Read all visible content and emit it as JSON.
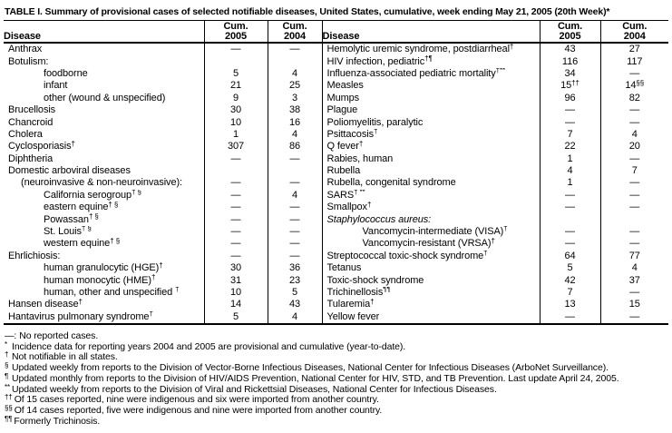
{
  "title": "TABLE I. Summary of provisional cases of selected notifiable diseases, United States, cumulative, week ending May 21, 2005 (20th Week)*",
  "table": {
    "header": {
      "disease": "Disease",
      "cum": "Cum.",
      "y2005": "2005",
      "y2004": "2004"
    },
    "left_rows": [
      {
        "name": "Anthrax",
        "sup": "",
        "indent": 0,
        "italic": false,
        "c5": "—",
        "c5sup": "",
        "c4": "—",
        "c4sup": ""
      },
      {
        "name": "Botulism:",
        "sup": "",
        "indent": 0,
        "italic": false,
        "c5": "",
        "c5sup": "",
        "c4": "",
        "c4sup": ""
      },
      {
        "name": "foodborne",
        "sup": "",
        "indent": 2,
        "italic": false,
        "c5": "5",
        "c5sup": "",
        "c4": "4",
        "c4sup": ""
      },
      {
        "name": "infant",
        "sup": "",
        "indent": 2,
        "italic": false,
        "c5": "21",
        "c5sup": "",
        "c4": "25",
        "c4sup": ""
      },
      {
        "name": "other (wound & unspecified)",
        "sup": "",
        "indent": 2,
        "italic": false,
        "c5": "9",
        "c5sup": "",
        "c4": "3",
        "c4sup": ""
      },
      {
        "name": "Brucellosis",
        "sup": "",
        "indent": 0,
        "italic": false,
        "c5": "30",
        "c5sup": "",
        "c4": "38",
        "c4sup": ""
      },
      {
        "name": "Chancroid",
        "sup": "",
        "indent": 0,
        "italic": false,
        "c5": "10",
        "c5sup": "",
        "c4": "16",
        "c4sup": ""
      },
      {
        "name": "Cholera",
        "sup": "",
        "indent": 0,
        "italic": false,
        "c5": "1",
        "c5sup": "",
        "c4": "4",
        "c4sup": ""
      },
      {
        "name": "Cyclosporiasis",
        "sup": "†",
        "indent": 0,
        "italic": false,
        "c5": "307",
        "c5sup": "",
        "c4": "86",
        "c4sup": ""
      },
      {
        "name": "Diphtheria",
        "sup": "",
        "indent": 0,
        "italic": false,
        "c5": "—",
        "c5sup": "",
        "c4": "—",
        "c4sup": ""
      },
      {
        "name": "Domestic arboviral diseases",
        "sup": "",
        "indent": 0,
        "italic": false,
        "c5": "",
        "c5sup": "",
        "c4": "",
        "c4sup": ""
      },
      {
        "name": "(neuroinvasive & non-neuroinvasive):",
        "sup": "",
        "indent": 1,
        "italic": false,
        "c5": "—",
        "c5sup": "",
        "c4": "—",
        "c4sup": ""
      },
      {
        "name": "California serogroup",
        "sup": "† §",
        "indent": 2,
        "italic": false,
        "c5": "—",
        "c5sup": "",
        "c4": "4",
        "c4sup": ""
      },
      {
        "name": "eastern equine",
        "sup": "† §",
        "indent": 2,
        "italic": false,
        "c5": "—",
        "c5sup": "",
        "c4": "—",
        "c4sup": ""
      },
      {
        "name": "Powassan",
        "sup": "† §",
        "indent": 2,
        "italic": false,
        "c5": "—",
        "c5sup": "",
        "c4": "—",
        "c4sup": ""
      },
      {
        "name": "St. Louis",
        "sup": "† §",
        "indent": 2,
        "italic": false,
        "c5": "—",
        "c5sup": "",
        "c4": "—",
        "c4sup": ""
      },
      {
        "name": "western equine",
        "sup": "† §",
        "indent": 2,
        "italic": false,
        "c5": "—",
        "c5sup": "",
        "c4": "—",
        "c4sup": ""
      },
      {
        "name": "Ehrlichiosis:",
        "sup": "",
        "indent": 0,
        "italic": false,
        "c5": "—",
        "c5sup": "",
        "c4": "—",
        "c4sup": ""
      },
      {
        "name": "human granulocytic (HGE)",
        "sup": "†",
        "indent": 2,
        "italic": false,
        "c5": "30",
        "c5sup": "",
        "c4": "36",
        "c4sup": ""
      },
      {
        "name": "human monocytic (HME)",
        "sup": "†",
        "indent": 2,
        "italic": false,
        "c5": "31",
        "c5sup": "",
        "c4": "23",
        "c4sup": ""
      },
      {
        "name": "human, other and unspecified ",
        "sup": "†",
        "indent": 2,
        "italic": false,
        "c5": "10",
        "c5sup": "",
        "c4": "5",
        "c4sup": ""
      },
      {
        "name": "Hansen disease",
        "sup": "†",
        "indent": 0,
        "italic": false,
        "c5": "14",
        "c5sup": "",
        "c4": "43",
        "c4sup": ""
      },
      {
        "name": "Hantavirus pulmonary syndrome",
        "sup": "†",
        "indent": 0,
        "italic": false,
        "c5": "5",
        "c5sup": "",
        "c4": "4",
        "c4sup": ""
      }
    ],
    "right_rows": [
      {
        "name": "Hemolytic uremic syndrome, postdiarrheal",
        "sup": "†",
        "indent": 0,
        "italic": false,
        "c5": "43",
        "c5sup": "",
        "c4": "27",
        "c4sup": ""
      },
      {
        "name": "HIV infection, pediatric",
        "sup": "†¶",
        "indent": 0,
        "italic": false,
        "c5": "116",
        "c5sup": "",
        "c4": "117",
        "c4sup": ""
      },
      {
        "name": "Influenza-associated pediatric mortality",
        "sup": "†**",
        "indent": 0,
        "italic": false,
        "c5": "34",
        "c5sup": "",
        "c4": "—",
        "c4sup": ""
      },
      {
        "name": "Measles",
        "sup": "",
        "indent": 0,
        "italic": false,
        "c5": "15",
        "c5sup": "††",
        "c4": "14",
        "c4sup": "§§"
      },
      {
        "name": "Mumps",
        "sup": "",
        "indent": 0,
        "italic": false,
        "c5": "96",
        "c5sup": "",
        "c4": "82",
        "c4sup": ""
      },
      {
        "name": "Plague",
        "sup": "",
        "indent": 0,
        "italic": false,
        "c5": "—",
        "c5sup": "",
        "c4": "—",
        "c4sup": ""
      },
      {
        "name": "Poliomyelitis, paralytic",
        "sup": "",
        "indent": 0,
        "italic": false,
        "c5": "—",
        "c5sup": "",
        "c4": "—",
        "c4sup": ""
      },
      {
        "name": "Psittacosis",
        "sup": "†",
        "indent": 0,
        "italic": false,
        "c5": "7",
        "c5sup": "",
        "c4": "4",
        "c4sup": ""
      },
      {
        "name": "Q fever",
        "sup": "†",
        "indent": 0,
        "italic": false,
        "c5": "22",
        "c5sup": "",
        "c4": "20",
        "c4sup": ""
      },
      {
        "name": "Rabies, human",
        "sup": "",
        "indent": 0,
        "italic": false,
        "c5": "1",
        "c5sup": "",
        "c4": "—",
        "c4sup": ""
      },
      {
        "name": "Rubella",
        "sup": "",
        "indent": 0,
        "italic": false,
        "c5": "4",
        "c5sup": "",
        "c4": "7",
        "c4sup": ""
      },
      {
        "name": "Rubella, congenital syndrome",
        "sup": "",
        "indent": 0,
        "italic": false,
        "c5": "1",
        "c5sup": "",
        "c4": "—",
        "c4sup": ""
      },
      {
        "name": "SARS",
        "sup": "† **",
        "indent": 0,
        "italic": false,
        "c5": "—",
        "c5sup": "",
        "c4": "—",
        "c4sup": ""
      },
      {
        "name": "Smallpox",
        "sup": "†",
        "indent": 0,
        "italic": false,
        "c5": "—",
        "c5sup": "",
        "c4": "—",
        "c4sup": ""
      },
      {
        "name": "Staphylococcus aureus:",
        "sup": "",
        "indent": 0,
        "italic": true,
        "c5": "",
        "c5sup": "",
        "c4": "",
        "c4sup": ""
      },
      {
        "name": "Vancomycin-intermediate (VISA)",
        "sup": "†",
        "indent": 2,
        "italic": false,
        "c5": "—",
        "c5sup": "",
        "c4": "—",
        "c4sup": ""
      },
      {
        "name": "Vancomycin-resistant (VRSA)",
        "sup": "†",
        "indent": 2,
        "italic": false,
        "c5": "—",
        "c5sup": "",
        "c4": "—",
        "c4sup": ""
      },
      {
        "name": "Streptococcal toxic-shock syndrome",
        "sup": "†",
        "indent": 0,
        "italic": false,
        "c5": "64",
        "c5sup": "",
        "c4": "77",
        "c4sup": ""
      },
      {
        "name": "Tetanus",
        "sup": "",
        "indent": 0,
        "italic": false,
        "c5": "5",
        "c5sup": "",
        "c4": "4",
        "c4sup": ""
      },
      {
        "name": "Toxic-shock syndrome",
        "sup": "",
        "indent": 0,
        "italic": false,
        "c5": "42",
        "c5sup": "",
        "c4": "37",
        "c4sup": ""
      },
      {
        "name": "Trichinellosis",
        "sup": "¶¶",
        "indent": 0,
        "italic": false,
        "c5": "7",
        "c5sup": "",
        "c4": "—",
        "c4sup": ""
      },
      {
        "name": "Tularemia",
        "sup": "†",
        "indent": 0,
        "italic": false,
        "c5": "13",
        "c5sup": "",
        "c4": "15",
        "c4sup": ""
      },
      {
        "name": "Yellow fever",
        "sup": "",
        "indent": 0,
        "italic": false,
        "c5": "—",
        "c5sup": "",
        "c4": "—",
        "c4sup": ""
      }
    ]
  },
  "footnotes": [
    {
      "marker": "—:",
      "text": "No reported cases.",
      "sup": false
    },
    {
      "marker": "*",
      "text": "Incidence data for reporting years 2004 and 2005 are provisional and cumulative (year-to-date).",
      "sup": true
    },
    {
      "marker": "†",
      "text": "Not notifiable in all states.",
      "sup": true
    },
    {
      "marker": "§",
      "text": "Updated weekly from reports to the Division of Vector-Borne Infectious Diseases, National Center for Infectious Diseases (ArboNet Surveillance).",
      "sup": true
    },
    {
      "marker": "¶",
      "text": "Updated monthly from reports to the Division of HIV/AIDS Prevention, National Center for HIV, STD, and TB Prevention. Last update April 24, 2005.",
      "sup": true
    },
    {
      "marker": "**",
      "text": "Updated weekly from reports to the Division of Viral and Rickettsial Diseases, National Center for Infectious Diseases.",
      "sup": true
    },
    {
      "marker": "††",
      "text": "Of 15 cases reported, nine were indigenous and six were imported from another country.",
      "sup": true
    },
    {
      "marker": "§§",
      "text": "Of 14 cases reported, five were indigenous and nine were imported from another country.",
      "sup": true
    },
    {
      "marker": "¶¶",
      "text": "Formerly Trichinosis.",
      "sup": true
    }
  ]
}
